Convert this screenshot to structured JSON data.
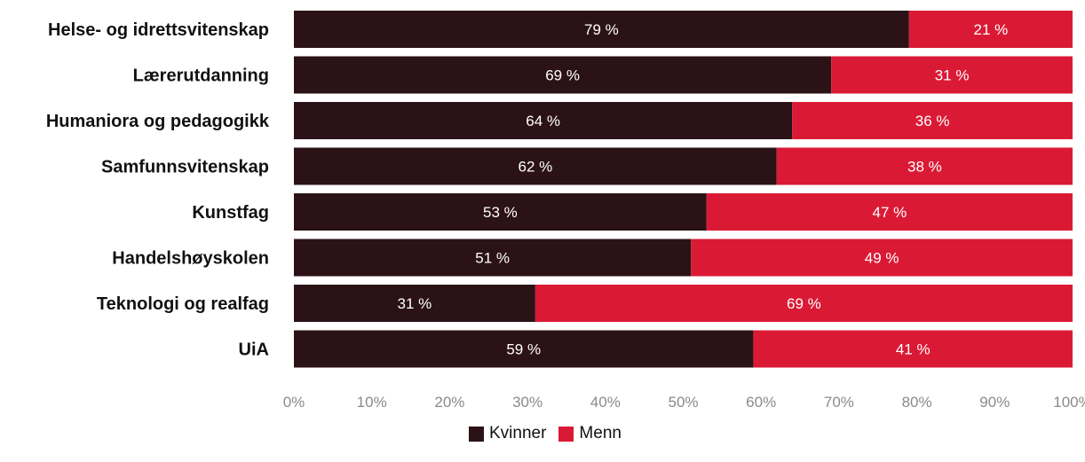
{
  "chart_data": {
    "type": "bar",
    "orientation": "horizontal",
    "stacked": true,
    "categories": [
      "Helse- og idrettsvitenskap",
      "Lærerutdanning",
      "Humaniora og pedagogikk",
      "Samfunnsvitenskap",
      "Kunstfag",
      "Handelshøyskolen",
      "Teknologi og realfag",
      "UiA"
    ],
    "series": [
      {
        "name": "Kvinner",
        "color": "#2b1216",
        "values": [
          79,
          69,
          64,
          62,
          53,
          51,
          31,
          59
        ],
        "labels": [
          "79 %",
          "69 %",
          "64 %",
          "62 %",
          "53 %",
          "51 %",
          "31 %",
          "59 %"
        ]
      },
      {
        "name": "Menn",
        "color": "#da1a35",
        "values": [
          21,
          31,
          36,
          38,
          47,
          49,
          69,
          41
        ],
        "labels": [
          "21 %",
          "31 %",
          "36 %",
          "38 %",
          "47 %",
          "49 %",
          "69 %",
          "41 %"
        ]
      }
    ],
    "xlim": [
      0,
      100
    ],
    "xticks": [
      "0%",
      "10%",
      "20%",
      "30%",
      "40%",
      "50%",
      "60%",
      "70%",
      "80%",
      "90%",
      "100%"
    ],
    "title": "",
    "xlabel": "",
    "ylabel": "",
    "grid": false,
    "legend_position": "bottom-center"
  }
}
